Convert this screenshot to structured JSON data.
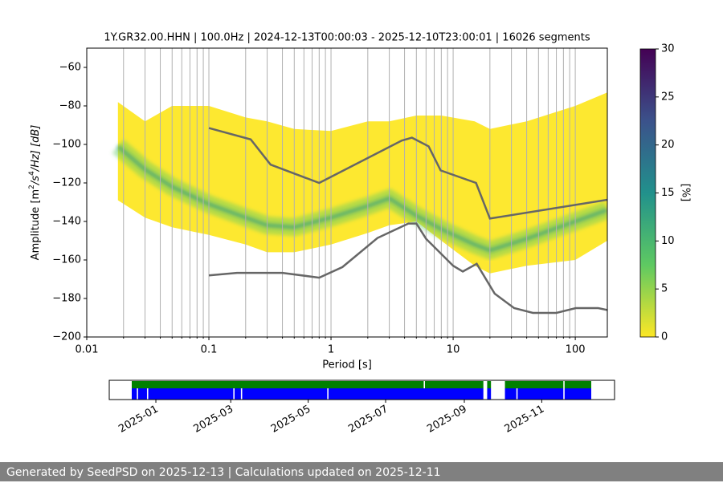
{
  "chart_data": {
    "type": "ppsd",
    "title": "1Y.GR32.00.HHN | 100.0Hz | 2024-12-13T00:00:03 - 2025-12-10T23:00:01 | 16026 segments",
    "xlabel": "Period [s]",
    "ylabel_parts": [
      "Amplitude [m",
      "2",
      "/s",
      "4",
      "/Hz] [dB]"
    ],
    "log_x": true,
    "xlim": [
      0.01,
      183
    ],
    "ylim": [
      -200,
      -50
    ],
    "xticks": [
      0.01,
      0.1,
      1,
      10,
      100
    ],
    "xgrid": [
      0.02,
      0.03,
      0.04,
      0.05,
      0.06,
      0.07,
      0.08,
      0.09,
      0.2,
      0.3,
      0.4,
      0.5,
      0.6,
      0.7,
      0.8,
      0.9,
      2,
      3,
      4,
      5,
      6,
      7,
      8,
      9,
      20,
      30,
      40,
      50,
      60,
      70,
      80,
      90
    ],
    "yticks": [
      {
        "value": -200,
        "label": "−200"
      },
      {
        "value": -180,
        "label": "−180"
      },
      {
        "value": -160,
        "label": "−160"
      },
      {
        "value": -140,
        "label": "−140"
      },
      {
        "value": -120,
        "label": "−120"
      },
      {
        "value": -100,
        "label": "−100"
      },
      {
        "value": -80,
        "label": "−80"
      },
      {
        "value": -60,
        "label": "−60"
      }
    ],
    "grid": "x",
    "pdf_envelope": {
      "x": [
        0.018,
        0.03,
        0.05,
        0.1,
        0.2,
        0.3,
        0.5,
        1,
        2,
        3,
        5,
        8,
        15,
        20,
        40,
        100,
        183
      ],
      "upper": [
        -78,
        -88,
        -80,
        -80,
        -86,
        -88,
        -92,
        -93,
        -88,
        -88,
        -85,
        -85,
        -88,
        -92,
        -88,
        -80,
        -73
      ],
      "lower": [
        -129,
        -138,
        -143,
        -147,
        -152,
        -156,
        -156,
        -152,
        -146,
        -142,
        -140,
        -150,
        -163,
        -167,
        -163,
        -160,
        -150
      ],
      "mode": [
        -101,
        -113,
        -122,
        -131,
        -138,
        -142,
        -143,
        -138,
        -132,
        -128,
        -137,
        -144,
        -152,
        -155,
        -149,
        -140,
        -134
      ]
    },
    "reference_curves": [
      {
        "color": "#666666",
        "x": [
          0.1,
          0.22,
          0.32,
          0.8,
          3.8,
          4.6,
          6.3,
          7.9,
          15.4,
          20,
          183
        ],
        "values": [
          -91.5,
          -97.4,
          -110.5,
          -120,
          -98,
          -96.5,
          -101,
          -113.5,
          -120,
          -138.5,
          -128.75
        ]
      },
      {
        "color": "#666666",
        "x": [
          0.1,
          0.17,
          0.4,
          0.8,
          1.24,
          2.4,
          4.3,
          5.0,
          6.0,
          10,
          12,
          15.6,
          21.9,
          31.6,
          45,
          70,
          101,
          154,
          183
        ],
        "values": [
          -168,
          -166.7,
          -166.7,
          -169.2,
          -163.7,
          -148.6,
          -141.1,
          -141.1,
          -149,
          -163,
          -166,
          -162,
          -177.5,
          -185,
          -187.5,
          -187.5,
          -185,
          -185,
          -186
        ]
      }
    ],
    "colorbar": {
      "label": "[%]",
      "lim": [
        0,
        30
      ],
      "ticks": [
        0,
        5,
        10,
        15,
        20,
        25,
        30
      ],
      "colormap": [
        "#fde725",
        "#5ec962",
        "#21918c",
        "#3b528b",
        "#440154"
      ]
    },
    "time_coverage": {
      "xlim": [
        "2024-12-13",
        "2025-12-10"
      ],
      "xticks": [
        "2025-01",
        "2025-03",
        "2025-05",
        "2025-07",
        "2025-09",
        "2025-11"
      ],
      "rows": [
        {
          "color": "#008000",
          "intervals": [
            [
              "2024-12-13",
              "2025-07-31"
            ],
            [
              "2025-08-01",
              "2025-09-16"
            ],
            [
              "2025-09-19",
              "2025-09-22"
            ],
            [
              "2025-10-03",
              "2025-11-18"
            ],
            [
              "2025-11-19",
              "2025-12-10"
            ]
          ]
        },
        {
          "color": "#0000ff",
          "intervals": [
            [
              "2024-12-13",
              "2024-12-17"
            ],
            [
              "2024-12-18",
              "2024-12-25"
            ],
            [
              "2024-12-26",
              "2025-03-03"
            ],
            [
              "2025-03-04",
              "2025-03-09"
            ],
            [
              "2025-03-10",
              "2025-05-16"
            ],
            [
              "2025-05-17",
              "2025-09-16"
            ],
            [
              "2025-09-19",
              "2025-09-22"
            ],
            [
              "2025-10-03",
              "2025-10-12"
            ],
            [
              "2025-10-13",
              "2025-11-18"
            ],
            [
              "2025-11-19",
              "2025-12-10"
            ]
          ]
        }
      ]
    }
  },
  "footer": "Generated by SeedPSD on 2025-12-13 | Calculations updated on 2025-12-11"
}
